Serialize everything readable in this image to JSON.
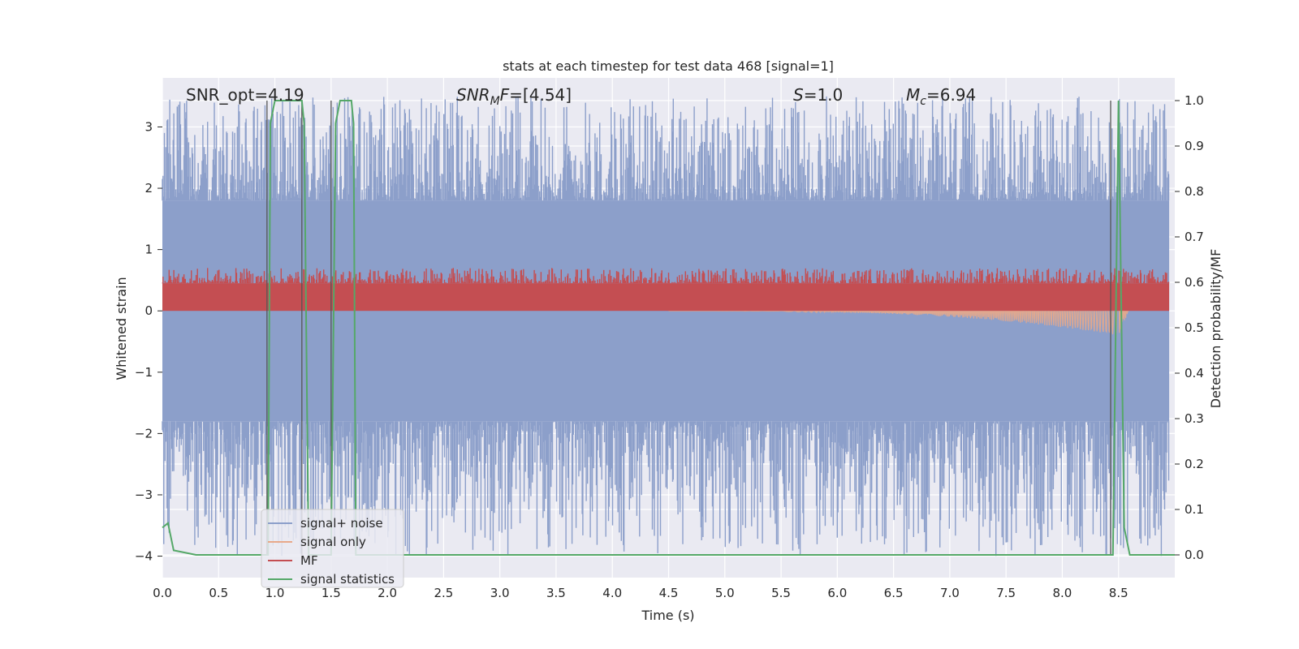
{
  "chart_data": {
    "type": "line",
    "title": "stats at each timestep for test data 468 [signal=1]",
    "xlabel": "Time (s)",
    "ylabel_left": "Whitened strain",
    "ylabel_right": "Detection probability/MF",
    "xlim": [
      0.0,
      9.0
    ],
    "ylim_left": [
      -4.35,
      3.8
    ],
    "ylim_right": [
      -0.05,
      1.05
    ],
    "xticks": [
      "0.0",
      "0.5",
      "1.0",
      "1.5",
      "2.0",
      "2.5",
      "3.0",
      "3.5",
      "4.0",
      "4.5",
      "5.0",
      "5.5",
      "6.0",
      "6.5",
      "7.0",
      "7.5",
      "8.0",
      "8.5"
    ],
    "yticks_left": [
      "−4",
      "−3",
      "−2",
      "−1",
      "0",
      "1",
      "2",
      "3"
    ],
    "yticks_right": [
      "0.0",
      "0.1",
      "0.2",
      "0.3",
      "0.4",
      "0.5",
      "0.6",
      "0.7",
      "0.8",
      "0.9",
      "1.0"
    ],
    "grid": true,
    "legend_position": "lower-left",
    "annotations": {
      "snr_opt": "SNR_opt=4.19",
      "snr_mf_italic": "SNR",
      "snr_mf_sub": "M",
      "snr_mf_rest_italic": "F",
      "snr_mf_value": "=[4.54]",
      "s_italic": "S",
      "s_value": "=1.0",
      "mc_italic": "M",
      "mc_sub": "c",
      "mc_value": "=6.94"
    },
    "series": [
      {
        "name": "signal+ noise",
        "color": "#8c9fca",
        "axis": "left",
        "kind": "noise",
        "envelope_upper": 1.8,
        "envelope_lower": -1.8,
        "typical_peak": 3.0
      },
      {
        "name": "signal only",
        "color": "#e8a98a",
        "axis": "left",
        "kind": "chirp",
        "start": 4.5,
        "merger": 8.5,
        "max_amplitude": 0.4
      },
      {
        "name": "MF",
        "color": "#c44e52",
        "axis": "left",
        "kind": "band",
        "baseline": 0.0,
        "band_upper": 0.45,
        "typical_peak": 0.7
      },
      {
        "name": "signal statistics",
        "color": "#55a868",
        "axis": "right",
        "x": [
          0.0,
          0.05,
          0.1,
          0.3,
          0.94,
          0.96,
          1.0,
          1.02,
          1.24,
          1.26,
          1.3,
          1.5,
          1.54,
          1.58,
          1.68,
          1.7,
          1.72,
          8.4,
          8.45,
          8.5,
          8.55,
          8.6,
          8.8,
          9.0
        ],
        "y": [
          0.06,
          0.07,
          0.01,
          0.0,
          0.0,
          0.95,
          1.0,
          1.0,
          1.0,
          0.95,
          0.0,
          0.0,
          0.95,
          1.0,
          1.0,
          0.95,
          0.0,
          0.0,
          0.0,
          1.0,
          0.06,
          0.0,
          0.0,
          0.0
        ]
      }
    ],
    "vertical_markers": [
      0.93,
      1.24,
      1.5,
      8.43
    ]
  }
}
